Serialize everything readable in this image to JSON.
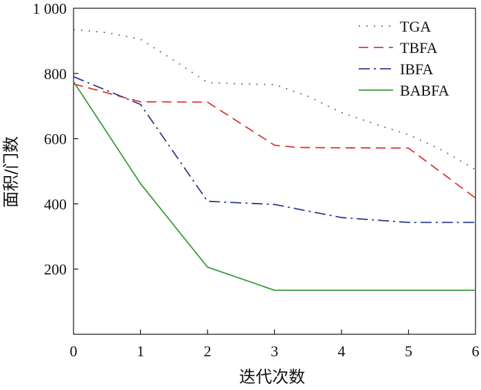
{
  "chart_data": {
    "type": "line",
    "title": "",
    "xlabel": "迭代次数",
    "ylabel": "面积/门数",
    "xlim": [
      0,
      6
    ],
    "ylim": [
      0,
      1000
    ],
    "x_ticks": [
      0,
      1,
      2,
      3,
      4,
      5,
      6
    ],
    "x_tick_labels": [
      "0",
      "1",
      "2",
      "3",
      "4",
      "5",
      "6"
    ],
    "y_ticks": [
      200,
      400,
      600,
      800,
      1000
    ],
    "y_tick_labels": [
      "200",
      "400",
      "600",
      "800",
      "1 000"
    ],
    "grid": false,
    "legend_position": "top-right",
    "series": [
      {
        "name": "TGA",
        "color": "#6e6e6e",
        "style": "dotted",
        "x": [
          0,
          0.5,
          1,
          1.5,
          2,
          2.5,
          3,
          3.5,
          4,
          4.5,
          5,
          5.5,
          6
        ],
        "values": [
          935,
          925,
          905,
          840,
          772,
          768,
          766,
          730,
          680,
          645,
          612,
          565,
          505
        ]
      },
      {
        "name": "TBFA",
        "color": "#e03030",
        "style": "dashed",
        "x": [
          0,
          1,
          2,
          3,
          3.35,
          4,
          5,
          6
        ],
        "values": [
          768,
          713,
          712,
          580,
          573,
          572,
          571,
          418
        ]
      },
      {
        "name": "IBFA",
        "color": "#2a3a8c",
        "style": "dashdot",
        "x": [
          0,
          1,
          2,
          3,
          4,
          5,
          6
        ],
        "values": [
          790,
          705,
          408,
          398,
          358,
          343,
          343
        ]
      },
      {
        "name": "BABFA",
        "color": "#3a9a3a",
        "style": "solid",
        "x": [
          0,
          1,
          2,
          3,
          4,
          5,
          6
        ],
        "values": [
          775,
          462,
          206,
          135,
          135,
          135,
          135
        ]
      }
    ]
  }
}
